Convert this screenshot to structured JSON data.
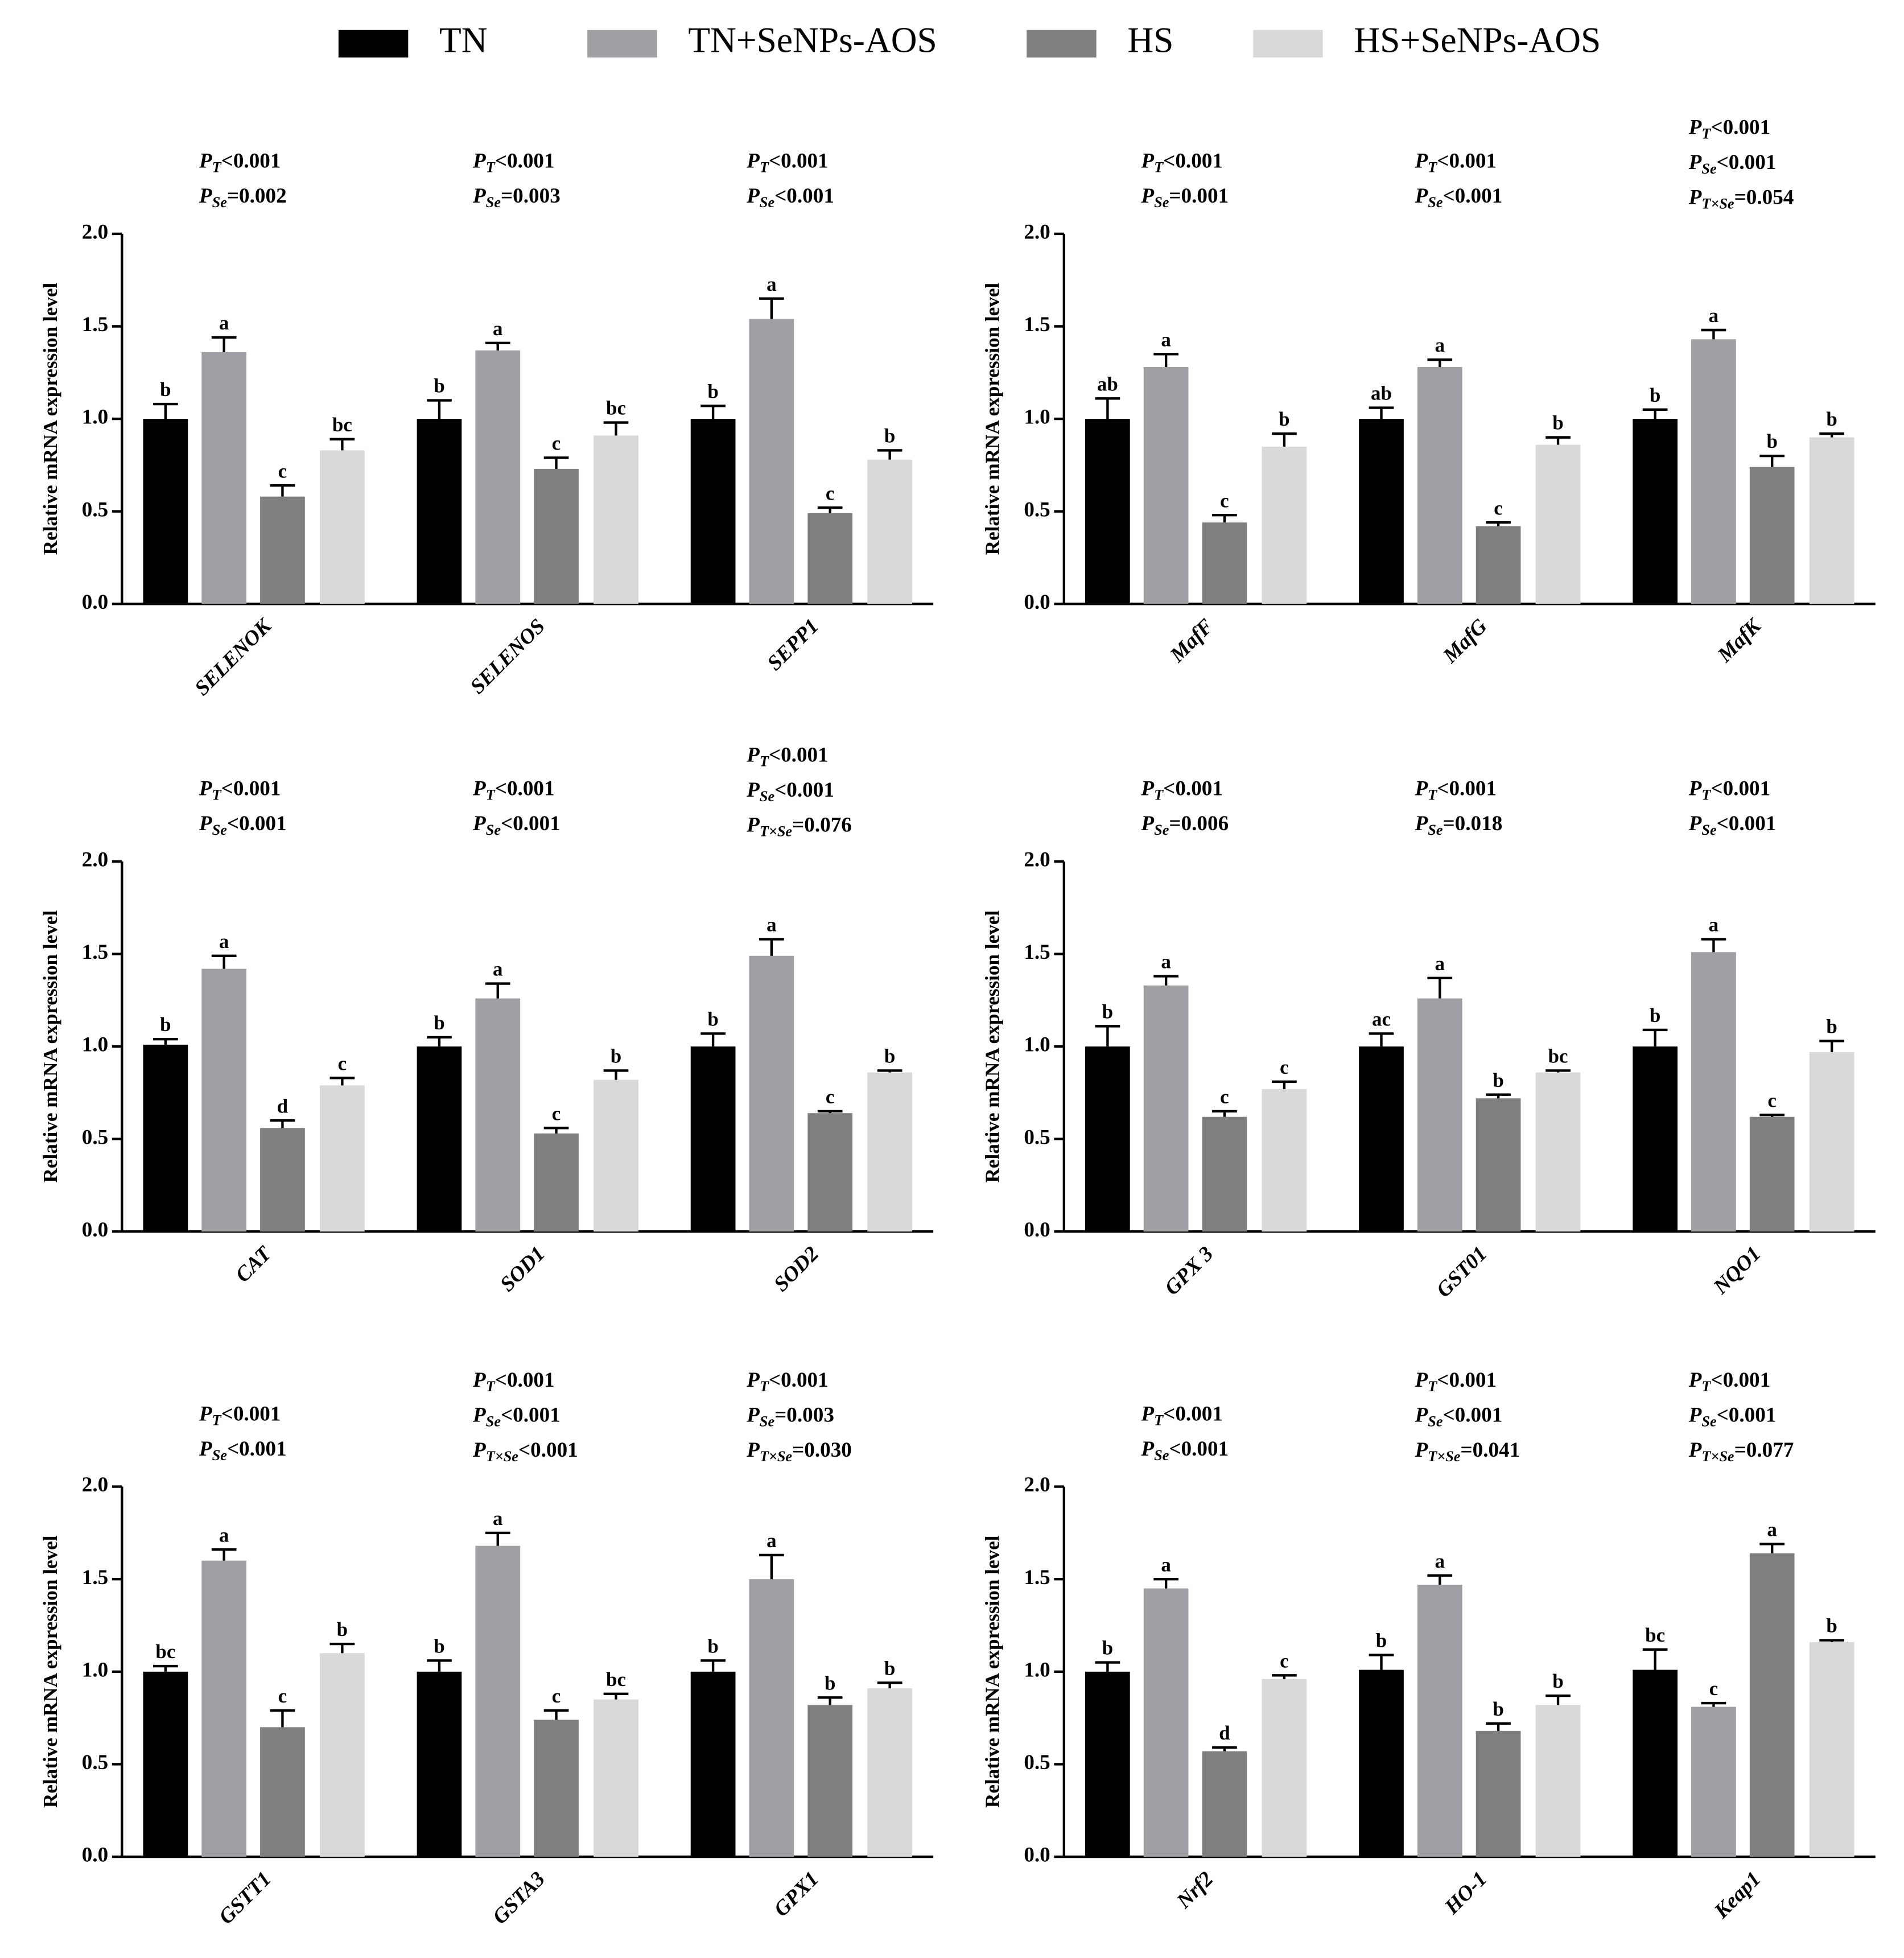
{
  "legend": [
    {
      "name": "TN",
      "color": "#000000"
    },
    {
      "name": "TN+SeNPs-AOS",
      "color": "#a0a0a4"
    },
    {
      "name": "HS",
      "color": "#7f7f7f"
    },
    {
      "name": "HS+SeNPs-AOS",
      "color": "#d9d9d9"
    }
  ],
  "chart_data": [
    {
      "type": "bar",
      "y_label": "Relative mRNA expression level",
      "categories": [
        "SELENOK",
        "SELENOS",
        "SEPP1"
      ],
      "ylim": [
        0,
        2
      ],
      "yticks": [
        {
          "value": 0,
          "label": "0.0"
        },
        {
          "value": 0.5,
          "label": "0.5"
        },
        {
          "value": 1,
          "label": "1.0"
        },
        {
          "value": 1.5,
          "label": "1.5"
        },
        {
          "value": 2,
          "label": "2.0"
        }
      ],
      "series": [
        {
          "values": [
            1.0,
            1.0,
            1.0
          ],
          "errors": [
            0.08,
            0.1,
            0.07
          ],
          "letters": [
            "b",
            "b",
            "b"
          ]
        },
        {
          "values": [
            1.36,
            1.37,
            1.54
          ],
          "errors": [
            0.08,
            0.04,
            0.11
          ],
          "letters": [
            "a",
            "a",
            "a"
          ]
        },
        {
          "values": [
            0.58,
            0.73,
            0.49
          ],
          "errors": [
            0.06,
            0.06,
            0.03
          ],
          "letters": [
            "c",
            "c",
            "c"
          ]
        },
        {
          "values": [
            0.83,
            0.91,
            0.78
          ],
          "errors": [
            0.06,
            0.07,
            0.05
          ],
          "letters": [
            "bc",
            "bc",
            "b"
          ]
        }
      ],
      "annotations": [
        [
          {
            "p": "P",
            "sub": "T",
            "text": "<0.001"
          },
          {
            "p": "P",
            "sub": "Se",
            "text": "=0.002"
          }
        ],
        [
          {
            "p": "P",
            "sub": "T",
            "text": "<0.001"
          },
          {
            "p": "P",
            "sub": "Se",
            "text": "=0.003"
          }
        ],
        [
          {
            "p": "P",
            "sub": "T",
            "text": "<0.001"
          },
          {
            "p": "P",
            "sub": "Se",
            "text": "<0.001"
          }
        ]
      ]
    },
    {
      "type": "bar",
      "y_label": "Relative mRNA expression level",
      "categories": [
        "MafF",
        "MafG",
        "MafK"
      ],
      "ylim": [
        0,
        2
      ],
      "yticks": [
        {
          "value": 0,
          "label": "0.0"
        },
        {
          "value": 0.5,
          "label": "0.5"
        },
        {
          "value": 1,
          "label": "1.0"
        },
        {
          "value": 1.5,
          "label": "1.5"
        },
        {
          "value": 2,
          "label": "2.0"
        }
      ],
      "series": [
        {
          "values": [
            1.0,
            1.0,
            1.0
          ],
          "errors": [
            0.11,
            0.06,
            0.05
          ],
          "letters": [
            "ab",
            "ab",
            "b"
          ]
        },
        {
          "values": [
            1.28,
            1.28,
            1.43
          ],
          "errors": [
            0.07,
            0.04,
            0.05
          ],
          "letters": [
            "a",
            "a",
            "a"
          ]
        },
        {
          "values": [
            0.44,
            0.42,
            0.74
          ],
          "errors": [
            0.04,
            0.02,
            0.06
          ],
          "letters": [
            "c",
            "c",
            "b"
          ]
        },
        {
          "values": [
            0.85,
            0.86,
            0.9
          ],
          "errors": [
            0.07,
            0.04,
            0.02
          ],
          "letters": [
            "b",
            "b",
            "b"
          ]
        }
      ],
      "annotations": [
        [
          {
            "p": "P",
            "sub": "T",
            "text": "<0.001"
          },
          {
            "p": "P",
            "sub": "Se",
            "text": "=0.001"
          }
        ],
        [
          {
            "p": "P",
            "sub": "T",
            "text": "<0.001"
          },
          {
            "p": "P",
            "sub": "Se",
            "text": "<0.001"
          }
        ],
        [
          {
            "p": "P",
            "sub": "T",
            "text": "<0.001"
          },
          {
            "p": "P",
            "sub": "Se",
            "text": "<0.001"
          },
          {
            "p": "P",
            "sub": "T×Se",
            "text": "=0.054"
          }
        ]
      ]
    },
    {
      "type": "bar",
      "y_label": "Relative mRNA expression level",
      "categories": [
        "CAT",
        "SOD1",
        "SOD2"
      ],
      "ylim": [
        0,
        2
      ],
      "yticks": [
        {
          "value": 0,
          "label": "0.0"
        },
        {
          "value": 0.5,
          "label": "0.5"
        },
        {
          "value": 1,
          "label": "1.0"
        },
        {
          "value": 1.5,
          "label": "1.5"
        },
        {
          "value": 2,
          "label": "2.0"
        }
      ],
      "series": [
        {
          "values": [
            1.01,
            1.0,
            1.0
          ],
          "errors": [
            0.03,
            0.05,
            0.07
          ],
          "letters": [
            "b",
            "b",
            "b"
          ]
        },
        {
          "values": [
            1.42,
            1.26,
            1.49
          ],
          "errors": [
            0.07,
            0.08,
            0.09
          ],
          "letters": [
            "a",
            "a",
            "a"
          ]
        },
        {
          "values": [
            0.56,
            0.53,
            0.64
          ],
          "errors": [
            0.04,
            0.03,
            0.01
          ],
          "letters": [
            "d",
            "c",
            "c"
          ]
        },
        {
          "values": [
            0.79,
            0.82,
            0.86
          ],
          "errors": [
            0.04,
            0.05,
            0.01
          ],
          "letters": [
            "c",
            "b",
            "b"
          ]
        }
      ],
      "annotations": [
        [
          {
            "p": "P",
            "sub": "T",
            "text": "<0.001"
          },
          {
            "p": "P",
            "sub": "Se",
            "text": "<0.001"
          }
        ],
        [
          {
            "p": "P",
            "sub": "T",
            "text": "<0.001"
          },
          {
            "p": "P",
            "sub": "Se",
            "text": "<0.001"
          }
        ],
        [
          {
            "p": "P",
            "sub": "T",
            "text": "<0.001"
          },
          {
            "p": "P",
            "sub": "Se",
            "text": "<0.001"
          },
          {
            "p": "P",
            "sub": "T×Se",
            "text": "=0.076"
          }
        ]
      ]
    },
    {
      "type": "bar",
      "y_label": "Relative mRNA expression level",
      "categories": [
        "GPX 3",
        "GST01",
        "NQO1"
      ],
      "ylim": [
        0,
        2
      ],
      "yticks": [
        {
          "value": 0,
          "label": "0.0"
        },
        {
          "value": 0.5,
          "label": "0.5"
        },
        {
          "value": 1,
          "label": "1.0"
        },
        {
          "value": 1.5,
          "label": "1.5"
        },
        {
          "value": 2,
          "label": "2.0"
        }
      ],
      "series": [
        {
          "values": [
            1.0,
            1.0,
            1.0
          ],
          "errors": [
            0.11,
            0.07,
            0.09
          ],
          "letters": [
            "b",
            "ac",
            "b"
          ]
        },
        {
          "values": [
            1.33,
            1.26,
            1.51
          ],
          "errors": [
            0.05,
            0.11,
            0.07
          ],
          "letters": [
            "a",
            "a",
            "a"
          ]
        },
        {
          "values": [
            0.62,
            0.72,
            0.62
          ],
          "errors": [
            0.03,
            0.02,
            0.01
          ],
          "letters": [
            "c",
            "b",
            "c"
          ]
        },
        {
          "values": [
            0.77,
            0.86,
            0.97
          ],
          "errors": [
            0.04,
            0.01,
            0.06
          ],
          "letters": [
            "c",
            "bc",
            "b"
          ]
        }
      ],
      "annotations": [
        [
          {
            "p": "P",
            "sub": "T",
            "text": "<0.001"
          },
          {
            "p": "P",
            "sub": "Se",
            "text": "=0.006"
          }
        ],
        [
          {
            "p": "P",
            "sub": "T",
            "text": "<0.001"
          },
          {
            "p": "P",
            "sub": "Se",
            "text": "=0.018"
          }
        ],
        [
          {
            "p": "P",
            "sub": "T",
            "text": "<0.001"
          },
          {
            "p": "P",
            "sub": "Se",
            "text": "<0.001"
          }
        ]
      ]
    },
    {
      "type": "bar",
      "y_label": "Relative mRNA expression level",
      "categories": [
        "GSTT1",
        "GSTA3",
        "GPX1"
      ],
      "ylim": [
        0,
        2
      ],
      "yticks": [
        {
          "value": 0,
          "label": "0.0"
        },
        {
          "value": 0.5,
          "label": "0.5"
        },
        {
          "value": 1,
          "label": "1.0"
        },
        {
          "value": 1.5,
          "label": "1.5"
        },
        {
          "value": 2,
          "label": "2.0"
        }
      ],
      "series": [
        {
          "values": [
            1.0,
            1.0,
            1.0
          ],
          "errors": [
            0.03,
            0.06,
            0.06
          ],
          "letters": [
            "bc",
            "b",
            "b"
          ]
        },
        {
          "values": [
            1.6,
            1.68,
            1.5
          ],
          "errors": [
            0.06,
            0.07,
            0.13
          ],
          "letters": [
            "a",
            "a",
            "a"
          ]
        },
        {
          "values": [
            0.7,
            0.74,
            0.82
          ],
          "errors": [
            0.09,
            0.05,
            0.04
          ],
          "letters": [
            "c",
            "c",
            "b"
          ]
        },
        {
          "values": [
            1.1,
            0.85,
            0.91
          ],
          "errors": [
            0.05,
            0.03,
            0.03
          ],
          "letters": [
            "b",
            "bc",
            "b"
          ]
        }
      ],
      "annotations": [
        [
          {
            "p": "P",
            "sub": "T",
            "text": "<0.001"
          },
          {
            "p": "P",
            "sub": "Se",
            "text": "<0.001"
          }
        ],
        [
          {
            "p": "P",
            "sub": "T",
            "text": "<0.001"
          },
          {
            "p": "P",
            "sub": "Se",
            "text": "<0.001"
          },
          {
            "p": "P",
            "sub": "T×Se",
            "text": "<0.001"
          }
        ],
        [
          {
            "p": "P",
            "sub": "T",
            "text": "<0.001"
          },
          {
            "p": "P",
            "sub": "Se",
            "text": "=0.003"
          },
          {
            "p": "P",
            "sub": "T×Se",
            "text": "=0.030"
          }
        ]
      ]
    },
    {
      "type": "bar",
      "y_label": "Relative mRNA expression level",
      "categories": [
        "Nrf2",
        "HO-1",
        "Keap1"
      ],
      "ylim": [
        0,
        2
      ],
      "yticks": [
        {
          "value": 0,
          "label": "0.0"
        },
        {
          "value": 0.5,
          "label": "0.5"
        },
        {
          "value": 1,
          "label": "1.0"
        },
        {
          "value": 1.5,
          "label": "1.5"
        },
        {
          "value": 2,
          "label": "2.0"
        }
      ],
      "series": [
        {
          "values": [
            1.0,
            1.01,
            1.01
          ],
          "errors": [
            0.05,
            0.08,
            0.11
          ],
          "letters": [
            "b",
            "b",
            "bc"
          ]
        },
        {
          "values": [
            1.45,
            1.47,
            0.81
          ],
          "errors": [
            0.05,
            0.05,
            0.02
          ],
          "letters": [
            "a",
            "a",
            "c"
          ]
        },
        {
          "values": [
            0.57,
            0.68,
            1.64
          ],
          "errors": [
            0.02,
            0.04,
            0.05
          ],
          "letters": [
            "d",
            "b",
            "a"
          ]
        },
        {
          "values": [
            0.96,
            0.82,
            1.16
          ],
          "errors": [
            0.02,
            0.05,
            0.01
          ],
          "letters": [
            "c",
            "b",
            "b"
          ]
        }
      ],
      "annotations": [
        [
          {
            "p": "P",
            "sub": "T",
            "text": "<0.001"
          },
          {
            "p": "P",
            "sub": "Se",
            "text": "<0.001"
          }
        ],
        [
          {
            "p": "P",
            "sub": "T",
            "text": "<0.001"
          },
          {
            "p": "P",
            "sub": "Se",
            "text": "<0.001"
          },
          {
            "p": "P",
            "sub": "T×Se",
            "text": "=0.041"
          }
        ],
        [
          {
            "p": "P",
            "sub": "T",
            "text": "<0.001"
          },
          {
            "p": "P",
            "sub": "Se",
            "text": "<0.001"
          },
          {
            "p": "P",
            "sub": "T×Se",
            "text": "=0.077"
          }
        ]
      ]
    }
  ]
}
